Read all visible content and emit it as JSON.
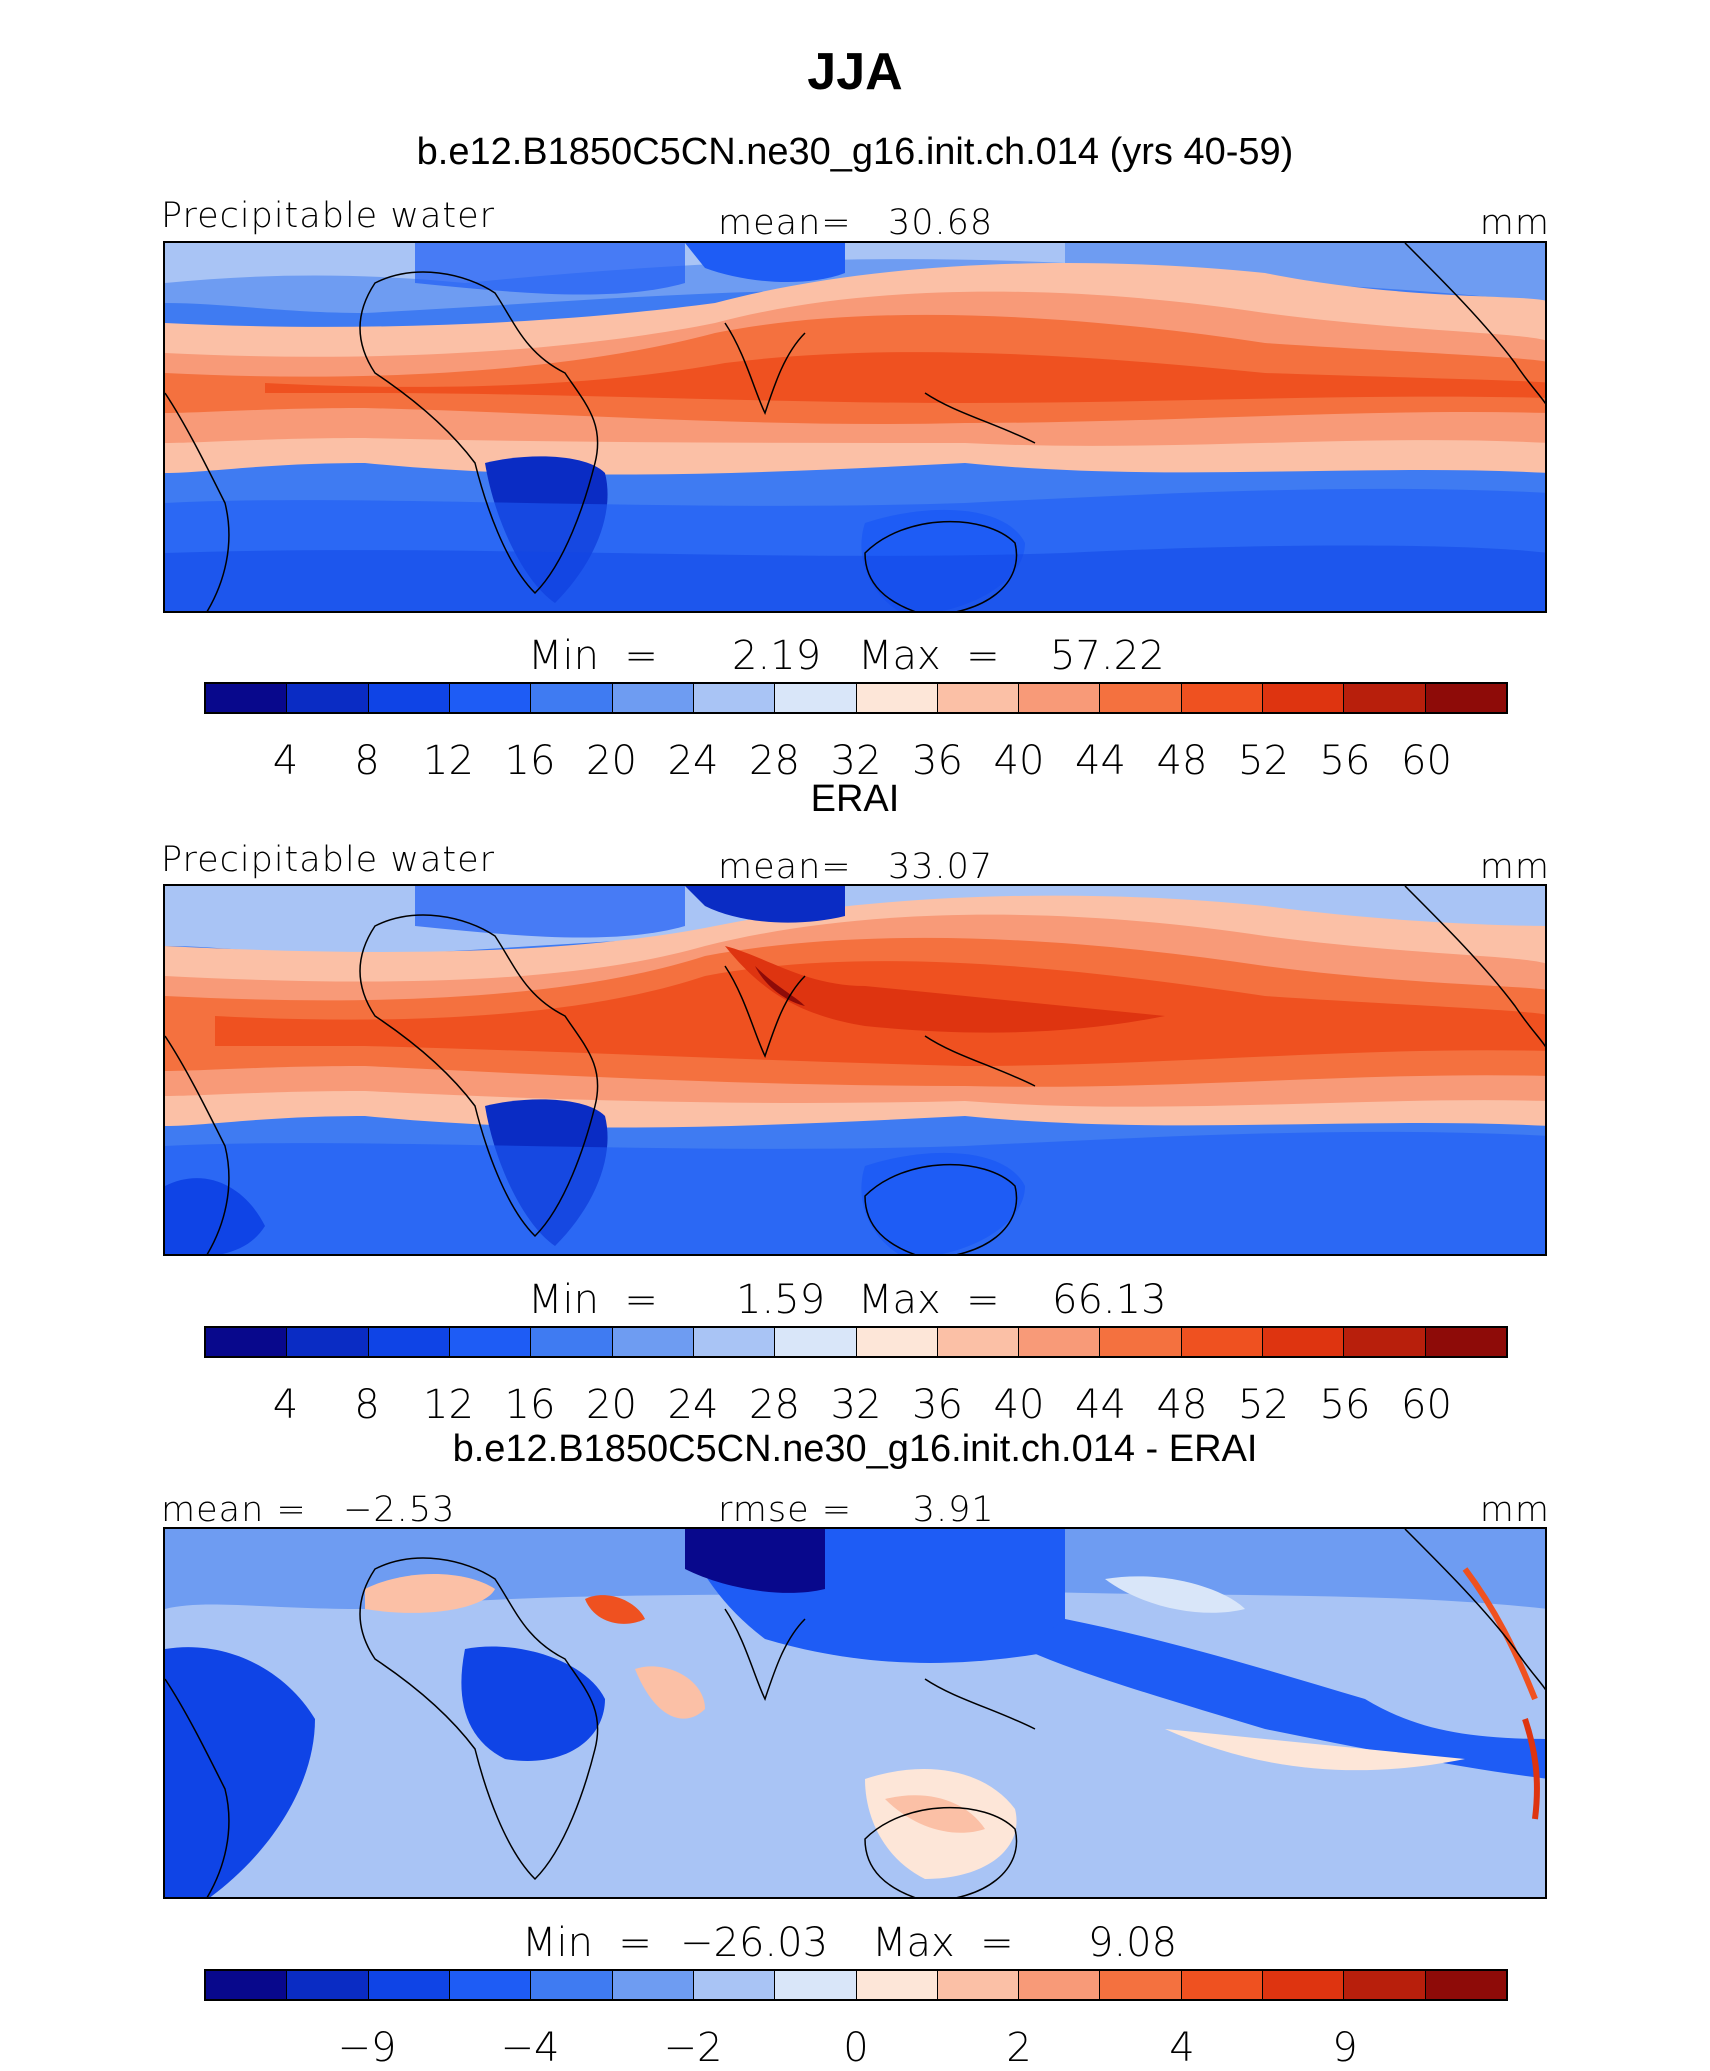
{
  "figure": {
    "season": "JJA",
    "colors": [
      "#08088c",
      "#0a2cc4",
      "#0f44e6",
      "#1e5cf5",
      "#3f7bf2",
      "#6e9cf2",
      "#a9c4f5",
      "#d9e6f9",
      "#fde6d8",
      "#fbc0a6",
      "#f89a78",
      "#f4713f",
      "#ef5120",
      "#de3410",
      "#b81f0c",
      "#8e0b08"
    ]
  },
  "panels": [
    {
      "id": "model",
      "title": "b.e12.B1850C5CN.ne30_g16.init.ch.014 (yrs 40-59)",
      "left_label": "Precipitable water",
      "center_label": "mean=   30.68",
      "units": "mm",
      "min_label": "Min  =",
      "min_value": "2.19",
      "max_label": "Max  =",
      "max_value": "57.22",
      "tick_labels": [
        "4",
        "8",
        "12",
        "16",
        "20",
        "24",
        "28",
        "32",
        "36",
        "40",
        "44",
        "48",
        "52",
        "56",
        "60"
      ]
    },
    {
      "id": "obs",
      "title": "ERAI",
      "left_label": "Precipitable water",
      "center_label": "mean=   33.07",
      "units": "mm",
      "min_label": "Min  =",
      "min_value": "1.59",
      "max_label": "Max  =",
      "max_value": "66.13",
      "tick_labels": [
        "4",
        "8",
        "12",
        "16",
        "20",
        "24",
        "28",
        "32",
        "36",
        "40",
        "44",
        "48",
        "52",
        "56",
        "60"
      ]
    },
    {
      "id": "diff",
      "title": "b.e12.B1850C5CN.ne30_g16.init.ch.014 - ERAI",
      "left_label": "mean =   −2.53",
      "center_label": "rmse =     3.91",
      "units": "mm",
      "min_label": "Min  =",
      "min_value": "−26.03",
      "max_label": "Max  =",
      "max_value": "9.08",
      "tick_labels": [
        "−9",
        "−4",
        "−2",
        "0",
        "2",
        "4",
        "9"
      ]
    }
  ]
}
